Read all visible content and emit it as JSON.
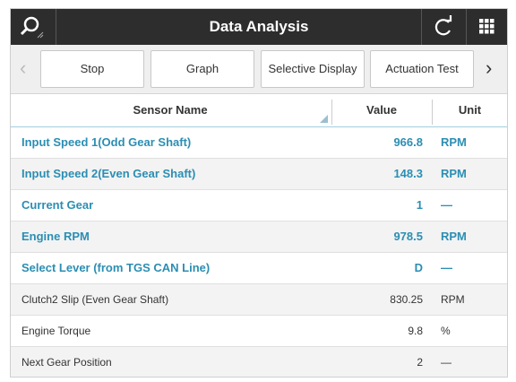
{
  "header": {
    "title": "Data Analysis"
  },
  "toolbar": {
    "buttons": [
      "Stop",
      "Graph",
      "Selective Display",
      "Actuation Test"
    ]
  },
  "table": {
    "columns": [
      "Sensor Name",
      "Value",
      "Unit"
    ],
    "rows": [
      [
        "Input Speed 1(Odd Gear Shaft)",
        "966.8",
        "RPM"
      ],
      [
        "Input Speed 2(Even Gear Shaft)",
        "148.3",
        "RPM"
      ],
      [
        "Current Gear",
        "1",
        "—"
      ],
      [
        "Engine RPM",
        "978.5",
        "RPM"
      ],
      [
        "Select Lever (from TGS CAN Line)",
        "D",
        "—"
      ],
      [
        "Clutch2 Slip (Even Gear Shaft)",
        "830.25",
        "RPM"
      ],
      [
        "Engine Torque",
        "9.8",
        "%"
      ],
      [
        "Next Gear Position",
        "2",
        "—"
      ]
    ]
  }
}
